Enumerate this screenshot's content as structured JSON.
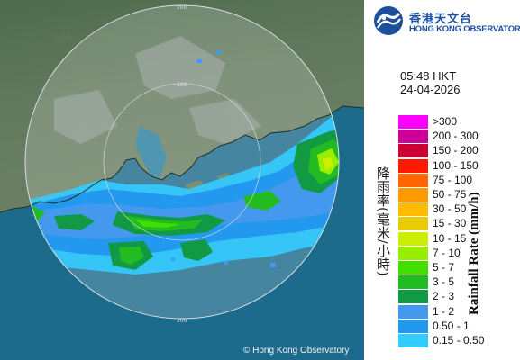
{
  "organization": {
    "name_zh": "香港天文台",
    "name_en": "HONG KONG OBSERVATORY",
    "brand_color": "#1c4f9c"
  },
  "observation": {
    "time": "05:48 HKT",
    "date": "24-04-2026"
  },
  "legend": {
    "title_zh": "降雨率(毫米/小時)",
    "title_en": "Rainfall Rate (mm/h)",
    "items": [
      {
        "label": ">300",
        "color": "#ff00ff"
      },
      {
        "label": "200 - 300",
        "color": "#cc0099"
      },
      {
        "label": "150 - 200",
        "color": "#cc0033"
      },
      {
        "label": "100 - 150",
        "color": "#ff1a00"
      },
      {
        "label": "75 - 100",
        "color": "#ff6600"
      },
      {
        "label": "50 - 75",
        "color": "#ff9900"
      },
      {
        "label": "30 - 50",
        "color": "#ffbb00"
      },
      {
        "label": "15 - 30",
        "color": "#e6cc00"
      },
      {
        "label": "10 - 15",
        "color": "#ccee00"
      },
      {
        "label": "7 - 10",
        "color": "#99ee00"
      },
      {
        "label": "5 - 7",
        "color": "#44dd00"
      },
      {
        "label": "3 - 5",
        "color": "#22bb22"
      },
      {
        "label": "2 - 3",
        "color": "#119944"
      },
      {
        "label": "1 - 2",
        "color": "#4499ee"
      },
      {
        "label": "0.50 - 1",
        "color": "#2299ee"
      },
      {
        "label": "0.15 - 0.50",
        "color": "#33ccff"
      }
    ]
  },
  "map": {
    "range_rings_km": [
      "100",
      "200"
    ],
    "copyright": "© Hong Kong Observatory"
  }
}
